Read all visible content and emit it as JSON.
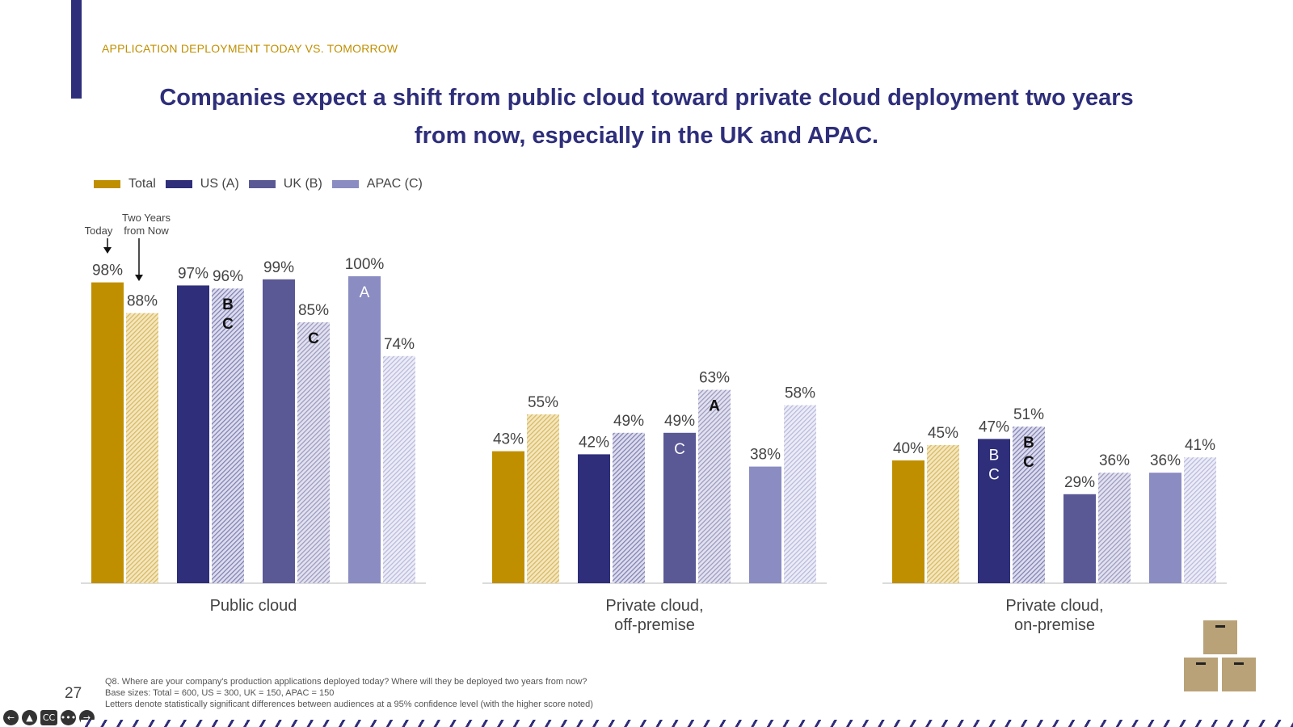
{
  "section_title": "APPLICATION DEPLOYMENT TODAY VS. TOMORROW",
  "headline_line1": "Companies expect a shift from public cloud toward private cloud deployment two years",
  "headline_line2": "from now, especially in the UK and APAC.",
  "legend": [
    {
      "label": "Total",
      "color": "#c08f00"
    },
    {
      "label": "US (A)",
      "color": "#2e2e7b"
    },
    {
      "label": "UK (B)",
      "color": "#5a5995"
    },
    {
      "label": "APAC (C)",
      "color": "#8a8cc2"
    }
  ],
  "annotations": {
    "today": "Today",
    "two_years_line1": "Two Years",
    "two_years_line2": "from Now"
  },
  "chart_data": {
    "type": "bar",
    "value_unit": "%",
    "bar_style": {
      "today": "solid",
      "two_years_from_now": "hatched"
    },
    "series": [
      {
        "name": "Total",
        "color": "#c08f00"
      },
      {
        "name": "US (A)",
        "color": "#2e2e7b"
      },
      {
        "name": "UK (B)",
        "color": "#5a5995"
      },
      {
        "name": "APAC (C)",
        "color": "#8a8cc2"
      }
    ],
    "groups": [
      {
        "label_lines": [
          "Public cloud"
        ],
        "pairs": [
          {
            "today": 98,
            "future": 88,
            "today_sig": "",
            "future_sig": ""
          },
          {
            "today": 97,
            "future": 96,
            "today_sig": "",
            "future_sig": "B\nC"
          },
          {
            "today": 99,
            "future": 85,
            "today_sig": "",
            "future_sig": "C"
          },
          {
            "today": 100,
            "future": 74,
            "today_sig": "A",
            "future_sig": ""
          }
        ]
      },
      {
        "label_lines": [
          "Private cloud,",
          "off-premise"
        ],
        "pairs": [
          {
            "today": 43,
            "future": 55,
            "today_sig": "",
            "future_sig": ""
          },
          {
            "today": 42,
            "future": 49,
            "today_sig": "",
            "future_sig": ""
          },
          {
            "today": 49,
            "future": 63,
            "today_sig": "C",
            "future_sig": "A"
          },
          {
            "today": 38,
            "future": 58,
            "today_sig": "",
            "future_sig": ""
          }
        ]
      },
      {
        "label_lines": [
          "Private cloud,",
          "on-premise"
        ],
        "pairs": [
          {
            "today": 40,
            "future": 45,
            "today_sig": "",
            "future_sig": ""
          },
          {
            "today": 47,
            "future": 51,
            "today_sig": "B\nC",
            "future_sig": "B\nC"
          },
          {
            "today": 29,
            "future": 36,
            "today_sig": "",
            "future_sig": ""
          },
          {
            "today": 36,
            "future": 41,
            "today_sig": "",
            "future_sig": ""
          }
        ]
      }
    ],
    "ylim": [
      0,
      100
    ]
  },
  "page_number": "27",
  "footnotes": [
    "Q8. Where are your company's production applications deployed today? Where will they be deployed two years from now?",
    "Base sizes: Total = 600, US = 300, UK = 150, APAC = 150",
    "Letters denote statistically significant differences between audiences at a 95% confidence level (with the higher score noted)"
  ],
  "controls": [
    {
      "icon": "back-arrow-icon",
      "glyph": "←"
    },
    {
      "icon": "pointer-icon",
      "glyph": "▲"
    },
    {
      "icon": "captions-icon",
      "glyph": "CC"
    },
    {
      "icon": "more-icon",
      "glyph": "•••"
    },
    {
      "icon": "forward-arrow-icon",
      "glyph": "→"
    }
  ]
}
